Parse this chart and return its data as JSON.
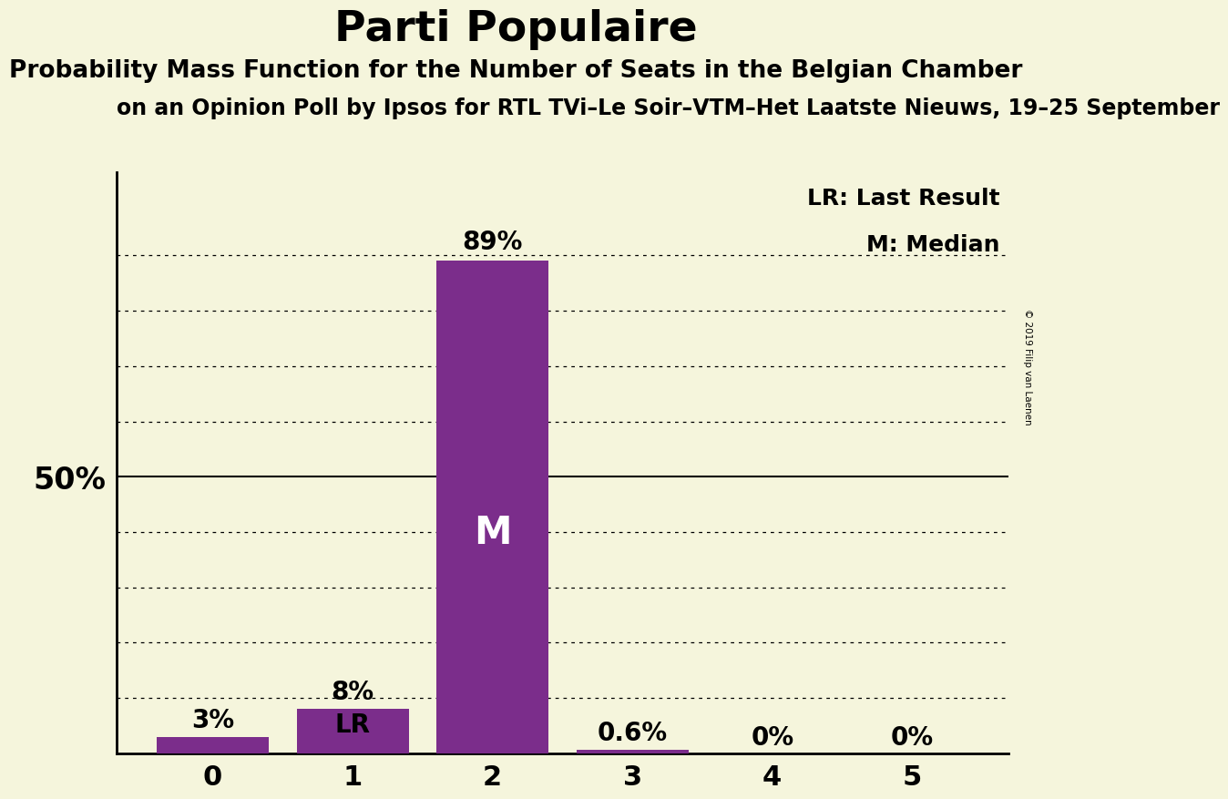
{
  "title": "Parti Populaire",
  "subtitle1": "Probability Mass Function for the Number of Seats in the Belgian Chamber",
  "subtitle2": "on an Opinion Poll by Ipsos for RTL TVi–Le Soir–VTM–Het Laatste Nieuws, 19–25 September",
  "copyright": "© 2019 Filip van Laenen",
  "categories": [
    0,
    1,
    2,
    3,
    4,
    5
  ],
  "values": [
    0.03,
    0.08,
    0.89,
    0.006,
    0.0,
    0.0
  ],
  "bar_color": "#7B2D8B",
  "background_color": "#F5F5DC",
  "annotations": {
    "0": "3%",
    "1": "8%",
    "2": "89%",
    "3": "0.6%",
    "4": "0%",
    "5": "0%"
  },
  "legend_lr": "LR: Last Result",
  "legend_m": "M: Median",
  "ylabel_50": "50%",
  "ylim": [
    0,
    1.05
  ],
  "ytick_50": 0.5,
  "gridline_values": [
    0.1,
    0.2,
    0.3,
    0.4,
    0.5,
    0.6,
    0.7,
    0.8,
    0.9
  ],
  "title_fontsize": 34,
  "subtitle1_fontsize": 19,
  "subtitle2_fontsize": 17,
  "tick_fontsize": 22,
  "annotation_fontsize": 20,
  "ylabel_fontsize": 24,
  "lr_label_inside_fontsize": 20,
  "m_label_fontsize": 30,
  "legend_fontsize": 18
}
